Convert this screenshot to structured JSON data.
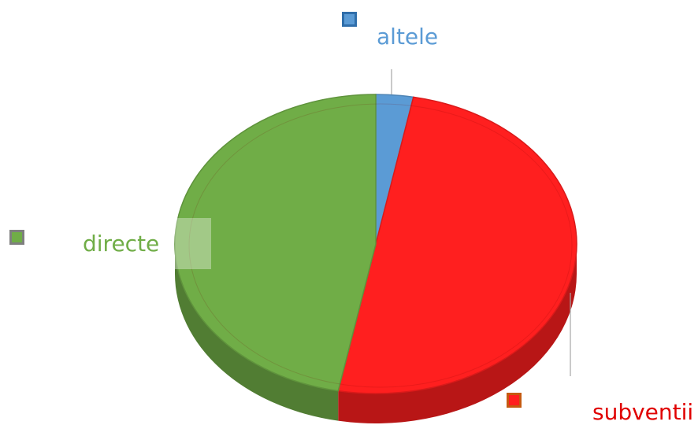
{
  "chart_data": {
    "type": "pie",
    "title": "",
    "categories": [
      "altele",
      "subventii",
      "directe"
    ],
    "values": [
      3,
      50,
      47
    ],
    "colors": [
      "#5b9bd5",
      "#ff1f1f",
      "#70ad47"
    ],
    "legend_colors": [
      "#2f6eaa",
      "#c55a11",
      "#7f7f7f"
    ],
    "label_colors": [
      "#5b9bd5",
      "#e00000",
      "#70ad47"
    ],
    "style": "3d-tilted",
    "legend": "inline-labels"
  }
}
